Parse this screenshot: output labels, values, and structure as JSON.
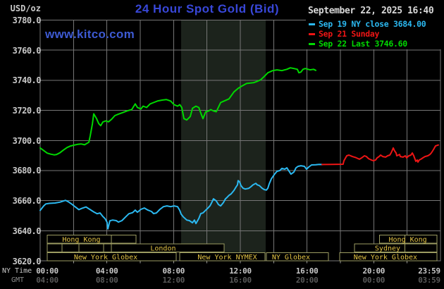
{
  "title": "24 Hour Spot Gold (Bid)",
  "watermark": "www.kitco.com",
  "datetime": "September 22, 2025 16:40",
  "colors": {
    "title_blue": "#3847d8",
    "kitco_blue": "#3d5ad2",
    "date_text": "#d8d8d8",
    "axis_text": "#c9c9c9",
    "gmt_text": "#5a5a5a",
    "grid": "#767676",
    "background": "#000000",
    "band": "#1c231c",
    "session_border": "#9c9c62",
    "session_text": "#e3c345",
    "series_cyan": "#2bb8f0",
    "series_red": "#ee1515",
    "series_green": "#00d800"
  },
  "legend": {
    "date": "September 22, 2025 16:40",
    "items": [
      {
        "label": "Sep 19 NY close 3684.00",
        "color": "#2bb8f0"
      },
      {
        "label": "Sep 21 Sunday",
        "color": "#ee1515"
      },
      {
        "label": "Sep 22 Last 3746.60",
        "color": "#00d800"
      }
    ]
  },
  "chart_data": {
    "type": "line",
    "title": "24 Hour Spot Gold (Bid)",
    "y_axis": {
      "unit": "USD/oz",
      "min": 3620,
      "max": 3780,
      "tick_step": 20,
      "tick_labels": [
        "3780.0",
        "3760.0",
        "3740.0",
        "3720.0",
        "3700.0",
        "3680.0",
        "3660.0",
        "3640.0",
        "3620.0"
      ]
    },
    "x_axis": {
      "hours": 24,
      "grid_step_hours": 2,
      "ny_label": "NY Time",
      "gmt_label": "GMT",
      "ny_ticks": [
        "00:00",
        "04:00",
        "08:00",
        "12:00",
        "16:00",
        "20:00",
        "23:59"
      ],
      "gmt_ticks": [
        "04:00",
        "08:00",
        "12:00",
        "16:00",
        "20:00",
        "00:00",
        "03:59"
      ]
    },
    "nymex_band": {
      "start_hour": 8.45,
      "end_hour": 13.52
    },
    "series": [
      {
        "name": "Sep 19 NY close 3684.00",
        "color": "#2bb8f0",
        "points": [
          [
            0,
            3653.5
          ],
          [
            0.21,
            3656.5
          ],
          [
            0.34,
            3657.8
          ],
          [
            0.55,
            3658.2
          ],
          [
            0.89,
            3658.4
          ],
          [
            1.18,
            3659
          ],
          [
            1.52,
            3660.2
          ],
          [
            1.69,
            3659.2
          ],
          [
            1.9,
            3657.6
          ],
          [
            2.11,
            3655.8
          ],
          [
            2.32,
            3654
          ],
          [
            2.49,
            3654.8
          ],
          [
            2.75,
            3655.8
          ],
          [
            3.0,
            3654
          ],
          [
            3.21,
            3652.5
          ],
          [
            3.42,
            3651.3
          ],
          [
            3.59,
            3651.8
          ],
          [
            3.76,
            3649.4
          ],
          [
            3.89,
            3648
          ],
          [
            4.01,
            3645.6
          ],
          [
            4.06,
            3641.2
          ],
          [
            4.18,
            3646.6
          ],
          [
            4.35,
            3647.1
          ],
          [
            4.56,
            3646.7
          ],
          [
            4.69,
            3645.7
          ],
          [
            4.9,
            3646.7
          ],
          [
            5.11,
            3649
          ],
          [
            5.32,
            3651.3
          ],
          [
            5.54,
            3652
          ],
          [
            5.7,
            3653.7
          ],
          [
            5.83,
            3652.3
          ],
          [
            6.04,
            3654.2
          ],
          [
            6.25,
            3655.1
          ],
          [
            6.46,
            3653.7
          ],
          [
            6.67,
            3652.8
          ],
          [
            6.8,
            3651.4
          ],
          [
            6.97,
            3651.8
          ],
          [
            7.18,
            3654.2
          ],
          [
            7.39,
            3656
          ],
          [
            7.6,
            3656.5
          ],
          [
            7.82,
            3656
          ],
          [
            8.03,
            3656.5
          ],
          [
            8.24,
            3656
          ],
          [
            8.37,
            3653.5
          ],
          [
            8.45,
            3651
          ],
          [
            8.58,
            3649.2
          ],
          [
            8.79,
            3647.1
          ],
          [
            8.95,
            3646.7
          ],
          [
            9.13,
            3645.3
          ],
          [
            9.25,
            3647.1
          ],
          [
            9.34,
            3644.8
          ],
          [
            9.51,
            3648.1
          ],
          [
            9.63,
            3651.4
          ],
          [
            9.76,
            3651.8
          ],
          [
            9.93,
            3653.7
          ],
          [
            10.06,
            3655.1
          ],
          [
            10.18,
            3656.5
          ],
          [
            10.27,
            3658.4
          ],
          [
            10.39,
            3661.2
          ],
          [
            10.56,
            3659.8
          ],
          [
            10.69,
            3657.4
          ],
          [
            10.82,
            3656.5
          ],
          [
            10.99,
            3658.8
          ],
          [
            11.11,
            3661.2
          ],
          [
            11.2,
            3662.1
          ],
          [
            11.32,
            3663.5
          ],
          [
            11.45,
            3664.5
          ],
          [
            11.62,
            3666.8
          ],
          [
            11.75,
            3669.2
          ],
          [
            11.83,
            3670.5
          ],
          [
            11.87,
            3673.3
          ],
          [
            11.96,
            3672.4
          ],
          [
            12.04,
            3670
          ],
          [
            12.17,
            3668.2
          ],
          [
            12.3,
            3667.7
          ],
          [
            12.51,
            3668.2
          ],
          [
            12.63,
            3669.2
          ],
          [
            12.76,
            3670.5
          ],
          [
            12.93,
            3671.5
          ],
          [
            13.01,
            3670.5
          ],
          [
            13.14,
            3670
          ],
          [
            13.31,
            3668.2
          ],
          [
            13.44,
            3667.3
          ],
          [
            13.56,
            3667
          ],
          [
            13.65,
            3668.3
          ],
          [
            13.73,
            3671
          ],
          [
            13.86,
            3674.5
          ],
          [
            14.07,
            3677.8
          ],
          [
            14.2,
            3679.5
          ],
          [
            14.37,
            3680
          ],
          [
            14.49,
            3681.4
          ],
          [
            14.66,
            3680.9
          ],
          [
            14.79,
            3681.8
          ],
          [
            15.04,
            3677.6
          ],
          [
            15.21,
            3679
          ],
          [
            15.34,
            3681.8
          ],
          [
            15.46,
            3682.8
          ],
          [
            15.63,
            3683.2
          ],
          [
            15.84,
            3682.8
          ],
          [
            15.97,
            3680.9
          ],
          [
            16.1,
            3682.3
          ],
          [
            16.27,
            3683.7
          ],
          [
            16.52,
            3683.8
          ],
          [
            16.73,
            3684.1
          ],
          [
            16.9,
            3684
          ]
        ]
      },
      {
        "name": "Sep 21 Sunday",
        "color": "#ee1515",
        "points": [
          [
            16.9,
            3684
          ],
          [
            17.45,
            3684.1
          ],
          [
            18.16,
            3684.2
          ],
          [
            18.21,
            3686.5
          ],
          [
            18.38,
            3689.8
          ],
          [
            18.51,
            3690.3
          ],
          [
            18.72,
            3689.3
          ],
          [
            18.93,
            3688.6
          ],
          [
            19.14,
            3687.5
          ],
          [
            19.27,
            3688.4
          ],
          [
            19.44,
            3689.8
          ],
          [
            19.56,
            3689.3
          ],
          [
            19.69,
            3687.9
          ],
          [
            19.86,
            3687
          ],
          [
            19.99,
            3686.5
          ],
          [
            20.11,
            3687
          ],
          [
            20.2,
            3688.4
          ],
          [
            20.32,
            3689.3
          ],
          [
            20.41,
            3690.3
          ],
          [
            20.54,
            3689.3
          ],
          [
            20.71,
            3688.9
          ],
          [
            20.83,
            3689.8
          ],
          [
            20.96,
            3690.3
          ],
          [
            21.04,
            3691.7
          ],
          [
            21.13,
            3694
          ],
          [
            21.17,
            3695
          ],
          [
            21.25,
            3693.1
          ],
          [
            21.34,
            3691.7
          ],
          [
            21.38,
            3689.8
          ],
          [
            21.55,
            3690.7
          ],
          [
            21.59,
            3689.3
          ],
          [
            21.76,
            3688.9
          ],
          [
            21.89,
            3689.8
          ],
          [
            21.97,
            3688.4
          ],
          [
            22.1,
            3689.8
          ],
          [
            22.23,
            3690.3
          ],
          [
            22.31,
            3691.7
          ],
          [
            22.4,
            3689.8
          ],
          [
            22.52,
            3686.1
          ],
          [
            22.61,
            3687
          ],
          [
            22.65,
            3685.6
          ],
          [
            22.73,
            3687
          ],
          [
            22.82,
            3687.5
          ],
          [
            22.94,
            3688.4
          ],
          [
            23.07,
            3689.3
          ],
          [
            23.24,
            3689.8
          ],
          [
            23.37,
            3690.7
          ],
          [
            23.45,
            3691.7
          ],
          [
            23.58,
            3694
          ],
          [
            23.7,
            3696.3
          ],
          [
            23.87,
            3697
          ]
        ]
      },
      {
        "name": "Sep 22 Last 3746.60",
        "color": "#00d800",
        "points": [
          [
            0,
            3695
          ],
          [
            0.21,
            3693.3
          ],
          [
            0.42,
            3691.6
          ],
          [
            0.63,
            3690.9
          ],
          [
            0.84,
            3690.4
          ],
          [
            0.97,
            3690.6
          ],
          [
            1.18,
            3691.8
          ],
          [
            1.39,
            3693.6
          ],
          [
            1.61,
            3695.3
          ],
          [
            1.82,
            3696.3
          ],
          [
            2.03,
            3696.9
          ],
          [
            2.24,
            3697.4
          ],
          [
            2.45,
            3697.7
          ],
          [
            2.66,
            3697.1
          ],
          [
            2.92,
            3698.8
          ],
          [
            3.0,
            3703
          ],
          [
            3.13,
            3711
          ],
          [
            3.21,
            3717.7
          ],
          [
            3.38,
            3714.5
          ],
          [
            3.51,
            3711.2
          ],
          [
            3.63,
            3709.8
          ],
          [
            3.76,
            3712.3
          ],
          [
            3.93,
            3713
          ],
          [
            4.1,
            3712.4
          ],
          [
            4.27,
            3714
          ],
          [
            4.48,
            3716.5
          ],
          [
            4.69,
            3717.5
          ],
          [
            4.94,
            3718.5
          ],
          [
            5.2,
            3719.6
          ],
          [
            5.49,
            3720.5
          ],
          [
            5.7,
            3724.3
          ],
          [
            5.83,
            3721.9
          ],
          [
            6.04,
            3720.9
          ],
          [
            6.17,
            3722.8
          ],
          [
            6.38,
            3721.9
          ],
          [
            6.59,
            3724.3
          ],
          [
            6.8,
            3725.2
          ],
          [
            7.06,
            3726.3
          ],
          [
            7.31,
            3726.8
          ],
          [
            7.56,
            3727.2
          ],
          [
            7.82,
            3726.2
          ],
          [
            8.03,
            3723.8
          ],
          [
            8.24,
            3722.8
          ],
          [
            8.37,
            3723.8
          ],
          [
            8.49,
            3721.9
          ],
          [
            8.62,
            3714.5
          ],
          [
            8.79,
            3713.6
          ],
          [
            9.0,
            3715.9
          ],
          [
            9.13,
            3721.4
          ],
          [
            9.34,
            3722.8
          ],
          [
            9.51,
            3721.9
          ],
          [
            9.63,
            3718.2
          ],
          [
            9.76,
            3714.5
          ],
          [
            9.93,
            3719.1
          ],
          [
            10.1,
            3719.6
          ],
          [
            10.23,
            3720.5
          ],
          [
            10.39,
            3719.6
          ],
          [
            10.56,
            3719.1
          ],
          [
            10.82,
            3725.2
          ],
          [
            11.03,
            3726.2
          ],
          [
            11.32,
            3727.6
          ],
          [
            11.62,
            3732.3
          ],
          [
            11.87,
            3734.6
          ],
          [
            12.08,
            3736.1
          ],
          [
            12.38,
            3737.9
          ],
          [
            12.8,
            3738.4
          ],
          [
            13.01,
            3739.3
          ],
          [
            13.22,
            3740.3
          ],
          [
            13.44,
            3742.6
          ],
          [
            13.65,
            3745
          ],
          [
            13.94,
            3746.4
          ],
          [
            14.2,
            3746.9
          ],
          [
            14.49,
            3746.4
          ],
          [
            14.79,
            3747.3
          ],
          [
            15.0,
            3748.3
          ],
          [
            15.21,
            3747.8
          ],
          [
            15.42,
            3747.3
          ],
          [
            15.51,
            3745
          ],
          [
            15.63,
            3745.4
          ],
          [
            15.76,
            3747.3
          ],
          [
            15.89,
            3747.8
          ],
          [
            16.06,
            3747.3
          ],
          [
            16.18,
            3746.9
          ],
          [
            16.39,
            3747.3
          ],
          [
            16.52,
            3746.6
          ]
        ]
      }
    ],
    "sessions": {
      "rows": [
        {
          "boxes": [
            {
              "start": 0.42,
              "end": 5.75,
              "dividers": [
                4.27
              ],
              "label": "Hong Kong",
              "label_center": 2.47
            },
            {
              "start": 20.34,
              "end": 23.79,
              "dividers": [
                21.86
              ],
              "label": "Hong Kong",
              "label_center": 22.04
            }
          ]
        },
        {
          "boxes": [
            {
              "start": 0.42,
              "end": 11.03,
              "dividers": [
                1.31,
                2.32,
                3.8,
                4.27
              ],
              "label": "London",
              "label_center": 7.37
            },
            {
              "start": 18.84,
              "end": 23.79,
              "dividers": [
                21.86
              ],
              "label": "Sydney",
              "label_center": 20.83
            }
          ]
        },
        {
          "boxes": [
            {
              "start": 0.42,
              "end": 8.15,
              "dividers": [],
              "label": "New York Globex",
              "label_center": 3.93
            },
            {
              "start": 8.37,
              "end": 13.48,
              "dividers": [],
              "label": "New York NYMEX",
              "label_center": 11.22
            },
            {
              "start": 13.56,
              "end": 17.28,
              "dividers": [],
              "label": "NY Globex",
              "label_center": 15.04
            },
            {
              "start": 17.95,
              "end": 23.79,
              "dividers": [],
              "label": "New York Globex",
              "label_center": 20.7
            }
          ]
        }
      ]
    }
  }
}
